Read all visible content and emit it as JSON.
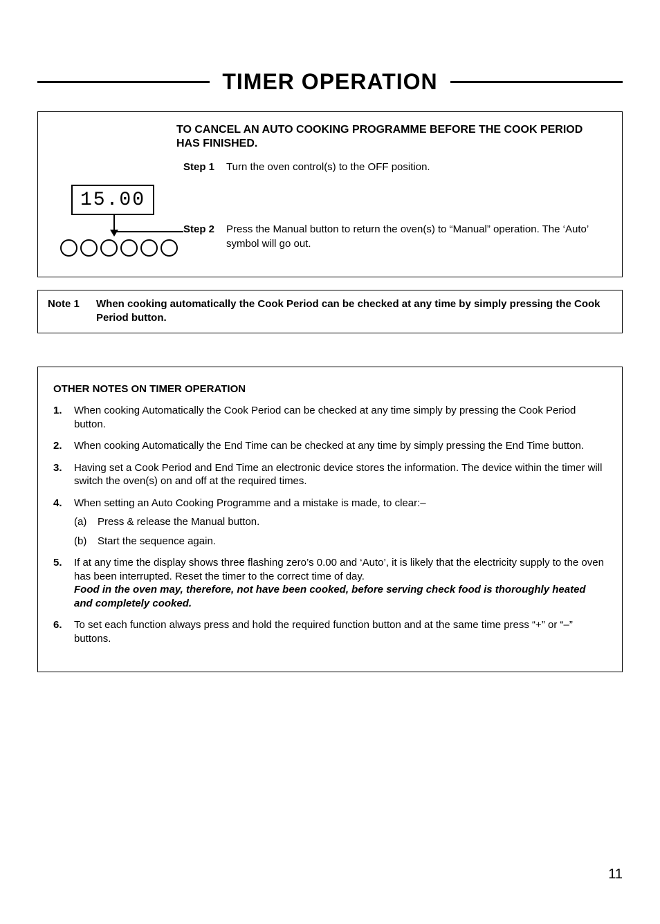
{
  "title": "TIMER OPERATION",
  "cancel": {
    "heading": "TO CANCEL AN AUTO COOKING PROGRAMME BEFORE THE COOK PERIOD HAS FINISHED.",
    "step1_label": "Step 1",
    "step1_text": "Turn the oven control(s) to the OFF position.",
    "step2_label": "Step 2",
    "step2_text": "Press the Manual button to return the oven(s) to “Manual” operation. The ‘Auto’ symbol will go out.",
    "display_value": "15.00"
  },
  "note1": {
    "label": "Note 1",
    "text": "When cooking automatically the Cook Period can be checked at any time by simply pressing the Cook Period button."
  },
  "other": {
    "heading": "OTHER NOTES ON TIMER OPERATION",
    "items": [
      {
        "n": "1.",
        "text": "When cooking Automatically the Cook Period can be checked at any time simply by pressing the Cook Period button."
      },
      {
        "n": "2.",
        "text": "When cooking Automatically the End Time can be checked at any time by simply pressing the End Time button."
      },
      {
        "n": "3.",
        "text": "Having set a Cook Period and End Time an electronic device stores the information. The device within the timer will switch the oven(s) on and off at the required times."
      },
      {
        "n": "4.",
        "text": "When setting an Auto Cooking Programme and a mistake is made, to clear:–",
        "subs": [
          {
            "l": "(a)",
            "t": "Press & release the Manual button."
          },
          {
            "l": "(b)",
            "t": "Start the sequence again."
          }
        ]
      },
      {
        "n": "5.",
        "text": "If at any time the display shows three flashing zero’s 0.00 and ‘Auto’, it is likely that the electricity supply to the oven has been interrupted. Reset the timer to the correct time of day.",
        "emph": "Food in the oven may, therefore, not have been cooked, before serving check food is thoroughly heated and completely cooked."
      },
      {
        "n": "6.",
        "text": "To set each function always press and hold the required function button and at the same time press “+” or “–” buttons."
      }
    ]
  },
  "page_number": "11"
}
